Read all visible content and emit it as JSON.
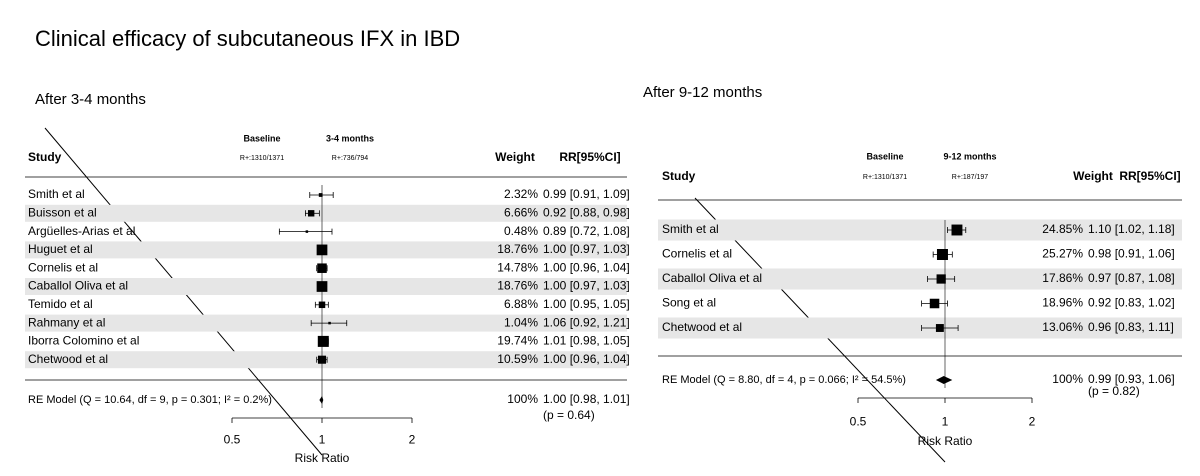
{
  "title": "Clinical efficacy of subcutaneous IFX in IBD",
  "chart_data": [
    {
      "type": "forest",
      "title": "After 3-4 months",
      "headers": {
        "study": "Study",
        "group1": "Baseline",
        "group1_n": "R+:1310/1371",
        "group2": "3-4 months",
        "group2_n": "R+:736/794",
        "weight": "Weight",
        "estimate": "RR[95%CI]"
      },
      "categories": [
        "Smith et al",
        "Buisson et al",
        "Argüelles-Arias et al",
        "Huguet et al",
        "Cornelis et al",
        "Caballol Oliva et al",
        "Temido et al",
        "Rahmany et al",
        "Iborra Colomino et al",
        "Chetwood et al"
      ],
      "weights": [
        2.32,
        6.66,
        0.48,
        18.76,
        14.78,
        18.76,
        6.88,
        1.04,
        19.74,
        10.59
      ],
      "weight_labels": [
        "2.32%",
        "6.66%",
        "0.48%",
        "18.76%",
        "14.78%",
        "18.76%",
        "6.88%",
        "1.04%",
        "19.74%",
        "10.59%"
      ],
      "values": [
        0.99,
        0.92,
        0.89,
        1.0,
        1.0,
        1.0,
        1.0,
        1.06,
        1.01,
        1.0
      ],
      "lower": [
        0.91,
        0.88,
        0.72,
        0.97,
        0.96,
        0.97,
        0.95,
        0.92,
        0.98,
        0.96
      ],
      "upper": [
        1.09,
        0.98,
        1.08,
        1.03,
        1.04,
        1.03,
        1.05,
        1.21,
        1.05,
        1.04
      ],
      "value_labels": [
        "0.99 [0.91, 1.09]",
        "0.92 [0.88, 0.98]",
        "0.89 [0.72, 1.08]",
        "1.00 [0.97, 1.03]",
        "1.00 [0.96, 1.04]",
        "1.00 [0.97, 1.03]",
        "1.00 [0.95, 1.05]",
        "1.06 [0.92, 1.21]",
        "1.01 [0.98, 1.05]",
        "1.00 [0.96, 1.04]"
      ],
      "model": {
        "label": "RE Model (Q = 10.64, df = 9, p = 0.301; I² = 0.2%)",
        "weight": 100,
        "weight_label": "100%",
        "value": 1.0,
        "lower": 0.98,
        "upper": 1.01,
        "value_label": "1.00 [0.98, 1.01]",
        "p_label": "(p = 0.64)"
      },
      "reference": 1,
      "xlabel": "Risk Ratio",
      "xscale": "log",
      "xlim": [
        0.5,
        2
      ],
      "xticks": [
        0.5,
        1,
        2
      ],
      "color": "#000000",
      "shade_color": "#e6e6e6"
    },
    {
      "type": "forest",
      "title": "After 9-12 months",
      "headers": {
        "study": "Study",
        "group1": "Baseline",
        "group1_n": "R+:1310/1371",
        "group2": "9-12 months",
        "group2_n": "R+:187/197",
        "weight": "Weight",
        "estimate": "RR[95%CI]"
      },
      "categories": [
        "Smith et al",
        "Cornelis et al",
        "Caballol Oliva et al",
        "Song et al",
        "Chetwood et al"
      ],
      "weights": [
        24.85,
        25.27,
        17.86,
        18.96,
        13.06
      ],
      "weight_labels": [
        "24.85%",
        "25.27%",
        "17.86%",
        "18.96%",
        "13.06%"
      ],
      "values": [
        1.1,
        0.98,
        0.97,
        0.92,
        0.96
      ],
      "lower": [
        1.02,
        0.91,
        0.87,
        0.83,
        0.83
      ],
      "upper": [
        1.18,
        1.06,
        1.08,
        1.02,
        1.11
      ],
      "value_labels": [
        "1.10 [1.02, 1.18]",
        "0.98 [0.91, 1.06]",
        "0.97 [0.87, 1.08]",
        "0.92 [0.83, 1.02]",
        "0.96 [0.83, 1.11]"
      ],
      "model": {
        "label": "RE Model (Q = 8.80, df = 4, p = 0.066; I² = 54.5%)",
        "weight": 100,
        "weight_label": "100%",
        "value": 0.99,
        "lower": 0.93,
        "upper": 1.06,
        "value_label": "0.99 [0.93, 1.06]",
        "p_label": "(p = 0.82)"
      },
      "reference": 1,
      "xlabel": "Risk Ratio",
      "xscale": "log",
      "xlim": [
        0.5,
        2
      ],
      "xticks": [
        0.5,
        1,
        2
      ],
      "color": "#000000",
      "shade_color": "#e6e6e6"
    }
  ]
}
